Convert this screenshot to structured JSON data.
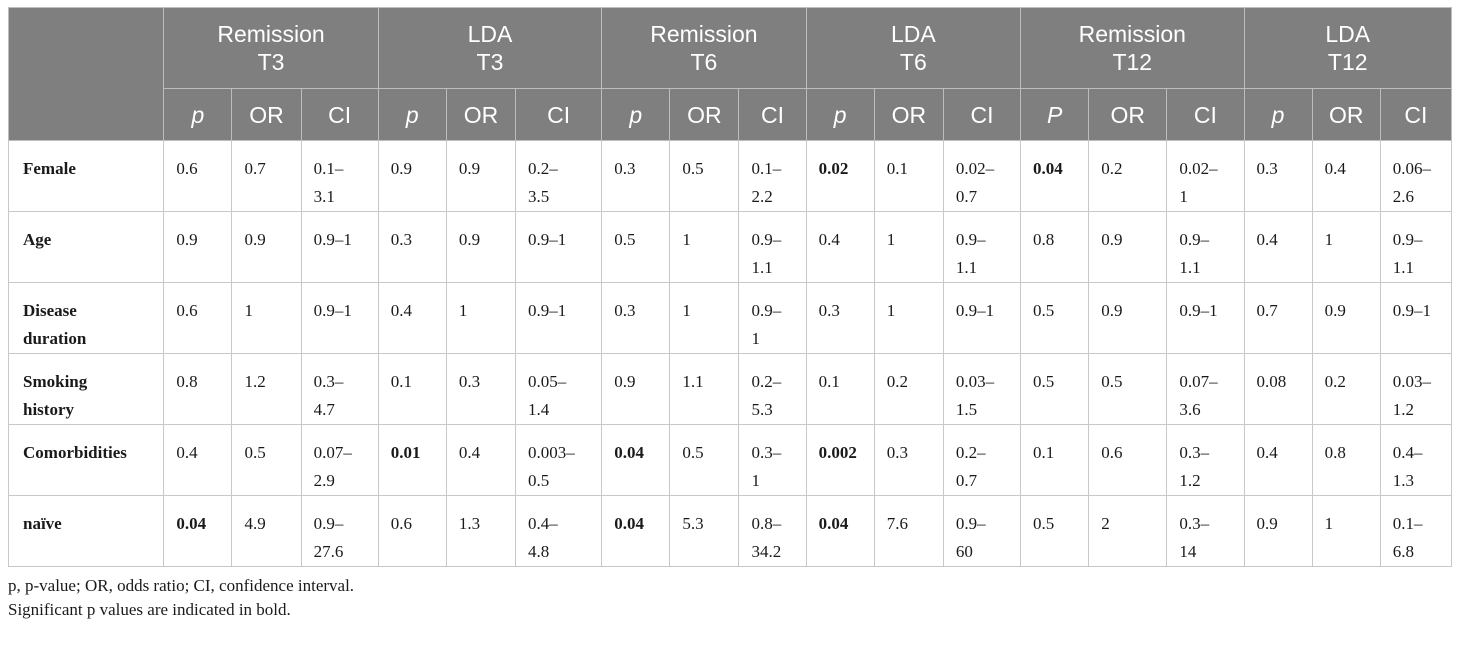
{
  "table": {
    "groups": [
      "Remission\nT3",
      "LDA\nT3",
      "Remission\nT6",
      "LDA\nT6",
      "Remission\nT12",
      "LDA\nT12"
    ],
    "subheaders": [
      "p",
      "OR",
      "CI",
      "p",
      "OR",
      "CI",
      "p",
      "OR",
      "CI",
      "p",
      "OR",
      "CI",
      "P",
      "OR",
      "CI",
      "p",
      "OR",
      "CI"
    ],
    "rows": [
      {
        "label": "Female",
        "cells": [
          "0.6",
          "0.7",
          "0.1–\n3.1",
          "0.9",
          "0.9",
          "0.2–\n3.5",
          "0.3",
          "0.5",
          "0.1–\n2.2",
          "0.02",
          "0.1",
          "0.02–\n0.7",
          "0.04",
          "0.2",
          "0.02–\n1",
          "0.3",
          "0.4",
          "0.06–\n2.6"
        ],
        "bold": [
          9,
          12
        ]
      },
      {
        "label": "Age",
        "cells": [
          "0.9",
          "0.9",
          "0.9–1",
          "0.3",
          "0.9",
          "0.9–1",
          "0.5",
          "1",
          "0.9–\n1.1",
          "0.4",
          "1",
          "0.9–\n1.1",
          "0.8",
          "0.9",
          "0.9–\n1.1",
          "0.4",
          "1",
          "0.9–\n1.1"
        ],
        "bold": []
      },
      {
        "label": "Disease\nduration",
        "cells": [
          "0.6",
          "1",
          "0.9–1",
          "0.4",
          "1",
          "0.9–1",
          "0.3",
          "1",
          "0.9–\n1",
          "0.3",
          "1",
          "0.9–1",
          "0.5",
          "0.9",
          "0.9–1",
          "0.7",
          "0.9",
          "0.9–1"
        ],
        "bold": []
      },
      {
        "label": "Smoking\nhistory",
        "cells": [
          "0.8",
          "1.2",
          "0.3–\n4.7",
          "0.1",
          "0.3",
          "0.05–\n1.4",
          "0.9",
          "1.1",
          "0.2–\n5.3",
          "0.1",
          "0.2",
          "0.03–\n1.5",
          "0.5",
          "0.5",
          "0.07–\n3.6",
          "0.08",
          "0.2",
          "0.03–\n1.2"
        ],
        "bold": []
      },
      {
        "label": "Comorbidities",
        "cells": [
          "0.4",
          "0.5",
          "0.07–\n2.9",
          "0.01",
          "0.4",
          "0.003–\n0.5",
          "0.04",
          "0.5",
          "0.3–\n1",
          "0.002",
          "0.3",
          "0.2–\n0.7",
          "0.1",
          "0.6",
          "0.3–\n1.2",
          "0.4",
          "0.8",
          "0.4–\n1.3"
        ],
        "bold": [
          3,
          6,
          9
        ]
      },
      {
        "label": "naïve",
        "cells": [
          "0.04",
          "4.9",
          "0.9–\n27.6",
          "0.6",
          "1.3",
          "0.4–\n4.8",
          "0.04",
          "5.3",
          "0.8–\n34.2",
          "0.04",
          "7.6",
          "0.9–\n60",
          "0.5",
          "2",
          "0.3–\n14",
          "0.9",
          "1",
          "0.1–\n6.8"
        ],
        "bold": [
          0,
          6,
          9
        ]
      }
    ]
  },
  "footnotes": {
    "line1": "p, p-value; OR, odds ratio; CI, confidence interval.",
    "line2": "Significant p values are indicated in bold."
  }
}
